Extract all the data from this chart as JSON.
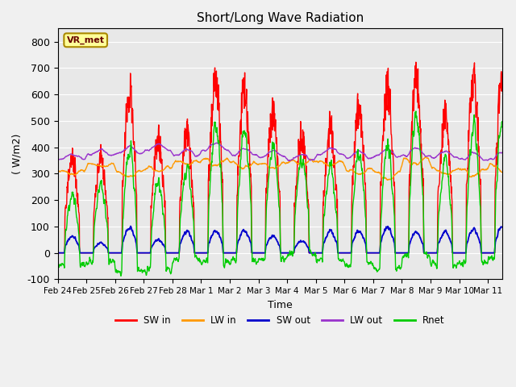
{
  "title": "Short/Long Wave Radiation",
  "xlabel": "Time",
  "ylabel": "( W/m2)",
  "ylim": [
    -100,
    850
  ],
  "background_color": "#f0f0f0",
  "plot_bg_color": "#e8e8e8",
  "legend_labels": [
    "SW in",
    "LW in",
    "SW out",
    "LW out",
    "Rnet"
  ],
  "legend_colors": [
    "#ff0000",
    "#ff9900",
    "#0000cc",
    "#9933cc",
    "#00cc00"
  ],
  "station_label": "VR_met",
  "xtick_labels": [
    "Feb 24",
    "Feb 25",
    "Feb 26",
    "Feb 27",
    "Feb 28",
    "Mar 1",
    "Mar 2",
    "Mar 3",
    "Mar 4",
    "Mar 5",
    "Mar 6",
    "Mar 7",
    "Mar 8",
    "Mar 9",
    "Mar 10",
    "Mar 11"
  ],
  "ytick_vals": [
    -100,
    0,
    100,
    200,
    300,
    400,
    500,
    600,
    700,
    800
  ],
  "day_peaks_sw_in": [
    420,
    415,
    710,
    490,
    515,
    760,
    700,
    605,
    510,
    545,
    635,
    710,
    750,
    585,
    755,
    780
  ],
  "line_width": 1.0
}
